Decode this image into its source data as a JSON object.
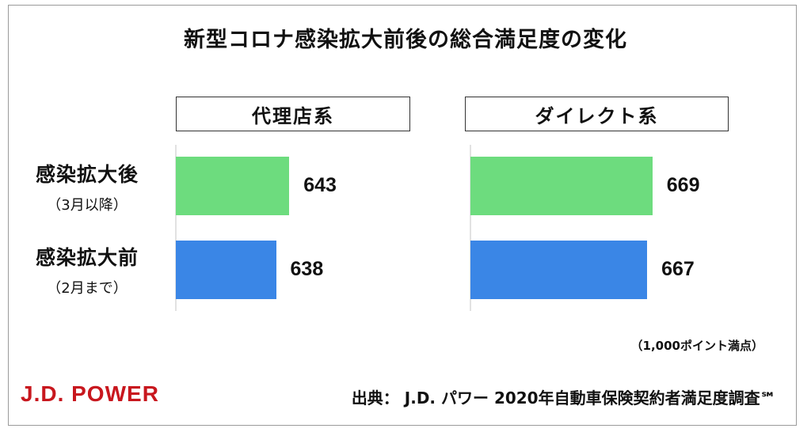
{
  "title": "新型コロナ感染拡大前後の総合満足度の変化",
  "colors": {
    "after": "#6ddc7e",
    "before": "#3a86e6",
    "logo": "#c8171e"
  },
  "chart_data": {
    "type": "bar",
    "title": "新型コロナ感染拡大前後の総合満足度の変化",
    "orientation": "horizontal",
    "panels": [
      "代理店系",
      "ダイレクト系"
    ],
    "categories": [
      {
        "label": "感染拡大後",
        "sub": "（3月以降）"
      },
      {
        "label": "感染拡大前",
        "sub": "（2月まで）"
      }
    ],
    "values": {
      "代理店系": [
        643,
        638
      ],
      "ダイレクト系": [
        669,
        667
      ]
    },
    "value_labels": {
      "代理店系": [
        "643",
        "638"
      ],
      "ダイレクト系": [
        "669",
        "667"
      ]
    },
    "unit_note": "（1,000ポイント満点）"
  },
  "footer": {
    "logo": "J.D. POWER",
    "source": "出典： J.D. パワー 2020年自動車保険契約者満足度調査℠"
  }
}
